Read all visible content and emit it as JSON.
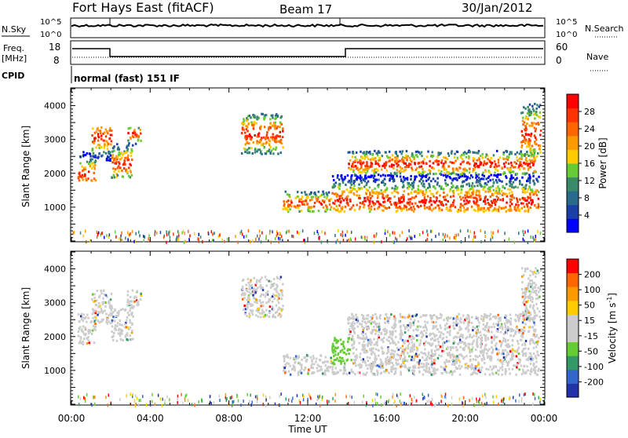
{
  "header": {
    "station": "Fort Hays East (fitACF)",
    "beam": "Beam 17",
    "date": "30/Jan/2012"
  },
  "top_panels": {
    "nsky_label": "N.Sky",
    "nsearch_label": "N.Search",
    "noise_ticks_left": [
      "10^5",
      "10^0"
    ],
    "noise_ticks_right": [
      "10^5",
      "10^0"
    ],
    "freq_label": "Freq.",
    "freq_unit": "[MHz]",
    "freq_ticks": [
      "18",
      "8"
    ],
    "nave_label": "Nave",
    "nave_ticks": [
      "60",
      "0"
    ],
    "cpid_label": "CPID",
    "cpid_value": "normal (fast) 151 IF"
  },
  "colors": {
    "power_scale": [
      "#0000ff",
      "#1a3fa8",
      "#2a6a8a",
      "#3a8a6a",
      "#66cc33",
      "#ffcc00",
      "#ff9900",
      "#ff6600",
      "#ff3300",
      "#ff0000"
    ],
    "velocity_scale": [
      "#2233aa",
      "#3366cc",
      "#339966",
      "#66cc33",
      "#cccccc",
      "#cccccc",
      "#ffcc00",
      "#ff9900",
      "#ff6600",
      "#ff0000"
    ]
  },
  "chart_data": [
    {
      "type": "heatmap",
      "name": "power",
      "ylabel": "Slant Range [km]",
      "yticks": [
        "1000",
        "2000",
        "3000",
        "4000"
      ],
      "ylim": [
        0,
        4500
      ],
      "xlim": [
        0,
        24
      ],
      "colorbar_label": "Power [dB]",
      "colorbar_ticks": [
        "28",
        "24",
        "20",
        "16",
        "12",
        "8",
        "4"
      ]
    },
    {
      "type": "heatmap",
      "name": "velocity",
      "ylabel": "Slant Range [km]",
      "yticks": [
        "1000",
        "2000",
        "3000",
        "4000"
      ],
      "ylim": [
        0,
        4500
      ],
      "xlim": [
        0,
        24
      ],
      "xticks": [
        "00:00",
        "04:00",
        "08:00",
        "12:00",
        "16:00",
        "20:00",
        "00:00"
      ],
      "xlabel": "Time UT",
      "colorbar_label": "Velocity [m s",
      "colorbar_label_sup": "-1",
      "colorbar_label_end": "]",
      "colorbar_ticks": [
        "200",
        "100",
        "50",
        "15",
        "-15",
        "-50",
        "-100",
        "-200"
      ]
    }
  ],
  "scatter_regions": [
    {
      "t0": 0.3,
      "t1": 1.2,
      "r0": 1800,
      "r1": 2700,
      "core": 2000
    },
    {
      "t0": 1.0,
      "t1": 2.0,
      "r0": 2400,
      "r1": 3400,
      "core": 3100
    },
    {
      "t0": 2.0,
      "t1": 3.1,
      "r0": 1900,
      "r1": 2900,
      "core": 2300
    },
    {
      "t0": 2.8,
      "t1": 3.5,
      "r0": 2900,
      "r1": 3400,
      "core": 3200
    },
    {
      "t0": 8.6,
      "t1": 10.7,
      "r0": 2600,
      "r1": 3800,
      "core": 3200
    },
    {
      "t0": 10.7,
      "t1": 13.2,
      "r0": 900,
      "r1": 1500,
      "core": 1150
    },
    {
      "t0": 13.2,
      "t1": 23.7,
      "r0": 900,
      "r1": 2000,
      "core": 1200
    },
    {
      "t0": 14.0,
      "t1": 23.6,
      "r0": 2000,
      "r1": 2700,
      "core": 2300
    },
    {
      "t0": 22.8,
      "t1": 23.8,
      "r0": 2500,
      "r1": 4100,
      "core": 3200
    }
  ]
}
